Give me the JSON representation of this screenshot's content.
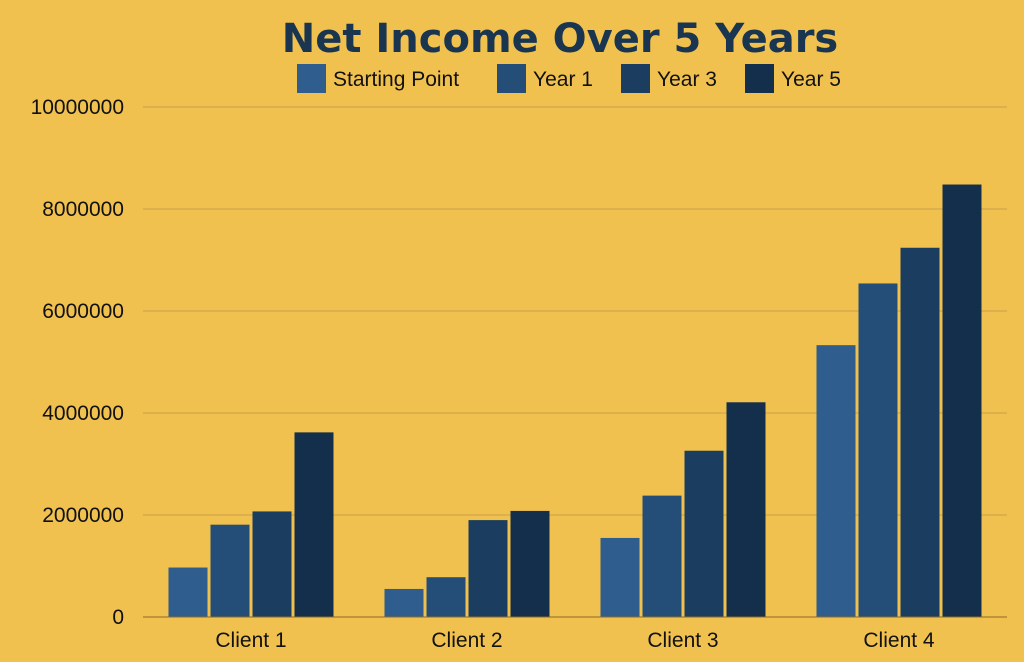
{
  "background_color": "#f0c14f",
  "chart_data": {
    "type": "bar",
    "title": "Net Income Over 5 Years",
    "xlabel": "",
    "ylabel": "",
    "categories": [
      "Client 1",
      "Client 2",
      "Client 3",
      "Client 4"
    ],
    "series": [
      {
        "name": "Starting Point",
        "color": "#2e5d8e",
        "values": [
          970000,
          550000,
          1550000,
          5330000
        ]
      },
      {
        "name": "Year 1",
        "color": "#244d77",
        "values": [
          1810000,
          780000,
          2380000,
          6540000
        ]
      },
      {
        "name": "Year 3",
        "color": "#1b3d60",
        "values": [
          2070000,
          1900000,
          3260000,
          7240000
        ]
      },
      {
        "name": "Year 5",
        "color": "#132f4c",
        "values": [
          3620000,
          2080000,
          4210000,
          8480000
        ]
      }
    ],
    "ylim": [
      0,
      10000000
    ],
    "yticks": [
      0,
      2000000,
      4000000,
      6000000,
      8000000,
      10000000
    ],
    "ytick_labels": [
      "0",
      "2000000",
      "4000000",
      "6000000",
      "8000000",
      "10000000"
    ],
    "grid": true,
    "legend_position": "top"
  }
}
